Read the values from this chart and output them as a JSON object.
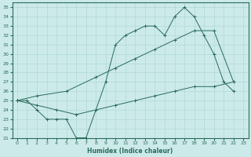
{
  "xlabel": "Humidex (Indice chaleur)",
  "bg_color": "#cceaea",
  "grid_color": "#b0d8d8",
  "line_color": "#2a6b5a",
  "xlim": [
    -0.5,
    23.5
  ],
  "ylim": [
    21,
    35.5
  ],
  "xticks": [
    0,
    1,
    2,
    3,
    4,
    5,
    6,
    7,
    8,
    9,
    10,
    11,
    12,
    13,
    14,
    15,
    16,
    17,
    18,
    19,
    20,
    21,
    22,
    23
  ],
  "yticks": [
    21,
    22,
    23,
    24,
    25,
    26,
    27,
    28,
    29,
    30,
    31,
    32,
    33,
    34,
    35
  ],
  "line1_x": [
    0,
    1,
    2,
    3,
    4,
    5,
    6,
    7,
    8,
    9,
    10,
    11,
    12,
    13,
    14,
    15,
    16,
    17,
    18,
    19,
    20,
    21,
    22
  ],
  "line1_y": [
    25,
    25,
    24,
    23,
    23,
    23,
    21,
    21,
    24,
    27,
    31,
    32,
    32.5,
    33,
    33,
    32,
    34,
    35,
    34,
    32,
    30,
    27,
    26
  ],
  "line2_x": [
    0,
    2,
    5,
    8,
    10,
    12,
    14,
    16,
    18,
    20,
    22
  ],
  "line2_y": [
    25,
    25.5,
    26,
    27.5,
    28.5,
    29.5,
    30.5,
    31.5,
    32.5,
    32.5,
    27
  ],
  "line3_x": [
    0,
    2,
    4,
    6,
    8,
    10,
    12,
    14,
    16,
    18,
    20,
    22
  ],
  "line3_y": [
    25,
    24.5,
    24,
    23.5,
    24,
    24.5,
    25,
    25.5,
    26,
    26.5,
    26.5,
    27
  ]
}
